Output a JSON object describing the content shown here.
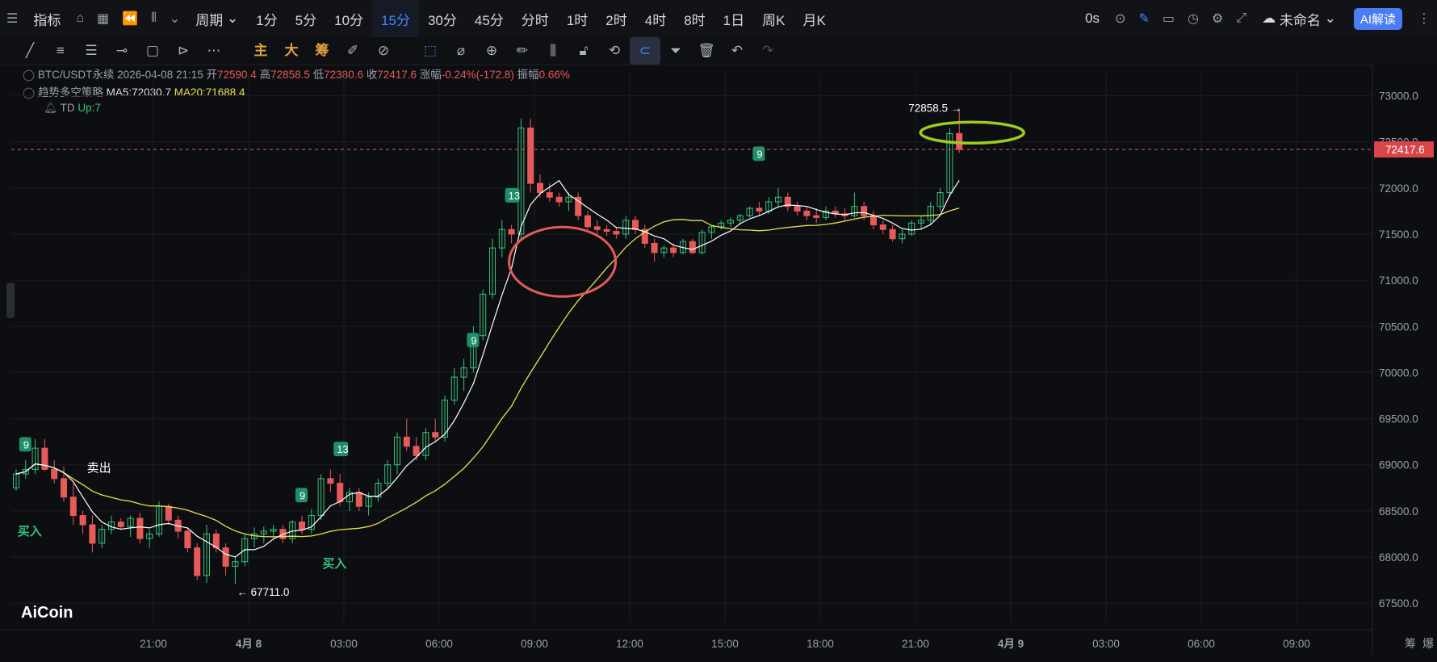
{
  "topbar": {
    "indicator_label": "指标",
    "period_label": "周期",
    "intervals": [
      "1分",
      "5分",
      "10分",
      "15分",
      "30分",
      "45分",
      "分时",
      "1时",
      "2时",
      "4时",
      "8时",
      "1日",
      "周K",
      "月K"
    ],
    "active_interval": "15分",
    "replay_label": "0s",
    "layout_name": "未命名",
    "ai_label": "AI解读"
  },
  "toolbar": {
    "main_label": "主",
    "big_label": "大",
    "chip_label": "筹"
  },
  "info": {
    "symbol": "BTC/USDT永续",
    "datetime": "2026-04-08 21:15",
    "open_label": "开",
    "open": "72590.4",
    "high_label": "高",
    "high": "72858.5",
    "low_label": "低",
    "low": "72380.6",
    "close_label": "收",
    "close": "72417.6",
    "change_label": "涨幅",
    "change": "-0.24%(-172.8)",
    "amp_label": "振幅",
    "amp": "0.66%",
    "strategy": "趋势多空策略",
    "ma5": "MA5:72030.7",
    "ma20": "MA20:71688.4",
    "td_label": "TD",
    "td_value": "Up:7"
  },
  "chart_data": {
    "type": "candlestick",
    "price_axis": [
      {
        "value": 73000,
        "label": "73000.0"
      },
      {
        "value": 72500,
        "label": "72500.0"
      },
      {
        "value": 72000,
        "label": "72000.0"
      },
      {
        "value": 71500,
        "label": "71500.0"
      },
      {
        "value": 71000,
        "label": "71000.0"
      },
      {
        "value": 70500,
        "label": "70500.0"
      },
      {
        "value": 70000,
        "label": "70000.0"
      },
      {
        "value": 69500,
        "label": "69500.0"
      },
      {
        "value": 69000,
        "label": "69000.0"
      },
      {
        "value": 68500,
        "label": "68500.0"
      },
      {
        "value": 68000,
        "label": "68000.0"
      },
      {
        "value": 67500,
        "label": "67500.0"
      }
    ],
    "time_axis": [
      "21:00",
      "4月 8",
      "03:00",
      "06:00",
      "09:00",
      "12:00",
      "15:00",
      "18:00",
      "21:00",
      "4月 9",
      "03:00",
      "06:00",
      "09:00"
    ],
    "ylim": [
      67300,
      73250
    ],
    "candle_count": 100,
    "current_price": "72417.6",
    "current_price_value": 72417.6,
    "high_marker": "72858.5",
    "high_value": 72858.5,
    "low_marker": "67711.0",
    "low_value": 67711.0,
    "buy_label": "买入",
    "sell_label": "卖出",
    "td_marks": [
      {
        "label": "9",
        "index": 1,
        "price": 68950
      },
      {
        "label": "9",
        "index": 30,
        "price": 68400
      },
      {
        "label": "13",
        "index": 34,
        "price": 68900
      },
      {
        "label": "9",
        "index": 48,
        "price": 70080
      },
      {
        "label": "13",
        "index": 52,
        "price": 71650
      },
      {
        "label": "9",
        "index": 78,
        "price": 72100
      }
    ],
    "buy_marks": [
      {
        "index": 1,
        "price": 68500
      },
      {
        "index": 33,
        "price": 68150
      }
    ],
    "sell_marks": [
      {
        "index": 7,
        "price": 68750
      }
    ],
    "ohlc": [
      [
        68750,
        68950,
        68720,
        68900
      ],
      [
        68900,
        69050,
        68850,
        68950
      ],
      [
        68950,
        69280,
        68900,
        69180
      ],
      [
        69180,
        69280,
        68930,
        68950
      ],
      [
        68950,
        69050,
        68800,
        68850
      ],
      [
        68850,
        68980,
        68600,
        68650
      ],
      [
        68650,
        68800,
        68350,
        68450
      ],
      [
        68450,
        68500,
        68250,
        68350
      ],
      [
        68350,
        68450,
        68050,
        68150
      ],
      [
        68150,
        68350,
        68100,
        68300
      ],
      [
        68300,
        68450,
        68250,
        68380
      ],
      [
        68380,
        68420,
        68300,
        68330
      ],
      [
        68330,
        68450,
        68220,
        68420
      ],
      [
        68420,
        68480,
        68150,
        68200
      ],
      [
        68200,
        68300,
        68100,
        68250
      ],
      [
        68250,
        68600,
        68220,
        68550
      ],
      [
        68550,
        68580,
        68350,
        68400
      ],
      [
        68400,
        68450,
        68200,
        68280
      ],
      [
        68280,
        68320,
        68050,
        68100
      ],
      [
        68100,
        68150,
        67750,
        67800
      ],
      [
        67800,
        68350,
        67720,
        68250
      ],
      [
        68250,
        68300,
        68050,
        68100
      ],
      [
        68100,
        68150,
        67800,
        67900
      ],
      [
        67900,
        68000,
        67711,
        67950
      ],
      [
        67950,
        68250,
        67900,
        68200
      ],
      [
        68200,
        68320,
        68100,
        68250
      ],
      [
        68250,
        68330,
        68150,
        68280
      ],
      [
        68280,
        68350,
        68200,
        68300
      ],
      [
        68300,
        68350,
        68150,
        68200
      ],
      [
        68200,
        68400,
        68150,
        68380
      ],
      [
        68380,
        68450,
        68250,
        68300
      ],
      [
        68300,
        68520,
        68250,
        68450
      ],
      [
        68450,
        68900,
        68400,
        68850
      ],
      [
        68850,
        68950,
        68700,
        68800
      ],
      [
        68800,
        68900,
        68550,
        68600
      ],
      [
        68600,
        68750,
        68500,
        68700
      ],
      [
        68700,
        68750,
        68500,
        68550
      ],
      [
        68550,
        68700,
        68450,
        68650
      ],
      [
        68650,
        68850,
        68600,
        68800
      ],
      [
        68800,
        69050,
        68750,
        69000
      ],
      [
        69000,
        69350,
        68900,
        69300
      ],
      [
        69300,
        69500,
        69150,
        69200
      ],
      [
        69200,
        69300,
        69050,
        69100
      ],
      [
        69100,
        69400,
        69050,
        69350
      ],
      [
        69350,
        69500,
        69250,
        69300
      ],
      [
        69300,
        69750,
        69250,
        69700
      ],
      [
        69700,
        70050,
        69650,
        69950
      ],
      [
        69950,
        70150,
        69800,
        70050
      ],
      [
        70050,
        70500,
        70000,
        70400
      ],
      [
        70400,
        70900,
        70350,
        70850
      ],
      [
        70850,
        71450,
        70800,
        71350
      ],
      [
        71350,
        71650,
        71250,
        71550
      ],
      [
        71550,
        71600,
        71400,
        71500
      ],
      [
        71500,
        72750,
        71450,
        72650
      ],
      [
        72650,
        72750,
        71950,
        72050
      ],
      [
        72050,
        72150,
        71900,
        71950
      ],
      [
        71950,
        72050,
        71850,
        71900
      ],
      [
        71900,
        71950,
        71800,
        71850
      ],
      [
        71850,
        71950,
        71750,
        71900
      ],
      [
        71900,
        71950,
        71650,
        71700
      ],
      [
        71700,
        71750,
        71550,
        71580
      ],
      [
        71580,
        71650,
        71500,
        71550
      ],
      [
        71550,
        71600,
        71480,
        71530
      ],
      [
        71530,
        71580,
        71450,
        71500
      ],
      [
        71500,
        71700,
        71450,
        71650
      ],
      [
        71650,
        71700,
        71500,
        71550
      ],
      [
        71550,
        71600,
        71350,
        71400
      ],
      [
        71400,
        71450,
        71200,
        71300
      ],
      [
        71300,
        71380,
        71250,
        71350
      ],
      [
        71350,
        71400,
        71250,
        71300
      ],
      [
        71300,
        71450,
        71280,
        71420
      ],
      [
        71420,
        71450,
        71280,
        71300
      ],
      [
        71300,
        71550,
        71280,
        71520
      ],
      [
        71520,
        71600,
        71450,
        71580
      ],
      [
        71580,
        71650,
        71550,
        71620
      ],
      [
        71620,
        71680,
        71580,
        71650
      ],
      [
        71650,
        71720,
        71600,
        71700
      ],
      [
        71700,
        71800,
        71680,
        71780
      ],
      [
        71780,
        71850,
        71700,
        71750
      ],
      [
        71750,
        71900,
        71720,
        71850
      ],
      [
        71850,
        72000,
        71800,
        71900
      ],
      [
        71900,
        71950,
        71750,
        71800
      ],
      [
        71800,
        71850,
        71700,
        71750
      ],
      [
        71750,
        71800,
        71650,
        71700
      ],
      [
        71700,
        71780,
        71620,
        71680
      ],
      [
        71680,
        71800,
        71650,
        71750
      ],
      [
        71750,
        71800,
        71680,
        71720
      ],
      [
        71720,
        71780,
        71650,
        71700
      ],
      [
        71700,
        71950,
        71680,
        71800
      ],
      [
        71800,
        71850,
        71650,
        71700
      ],
      [
        71700,
        71750,
        71550,
        71600
      ],
      [
        71600,
        71650,
        71500,
        71550
      ],
      [
        71550,
        71600,
        71420,
        71450
      ],
      [
        71450,
        71550,
        71400,
        71500
      ],
      [
        71500,
        71650,
        71480,
        71620
      ],
      [
        71620,
        71700,
        71550,
        71650
      ],
      [
        71650,
        71850,
        71600,
        71800
      ],
      [
        71800,
        72000,
        71750,
        71950
      ],
      [
        71950,
        72650,
        71900,
        72590
      ],
      [
        72590,
        72858.5,
        72380.6,
        72417.6
      ]
    ],
    "ma5_color": "#ffffff",
    "ma20_color": "#e8e052",
    "up_color": "#36c27b",
    "down_color": "#e65a5a"
  },
  "watermark": "AiCoin",
  "bottom_right": [
    "筹",
    "爆"
  ]
}
